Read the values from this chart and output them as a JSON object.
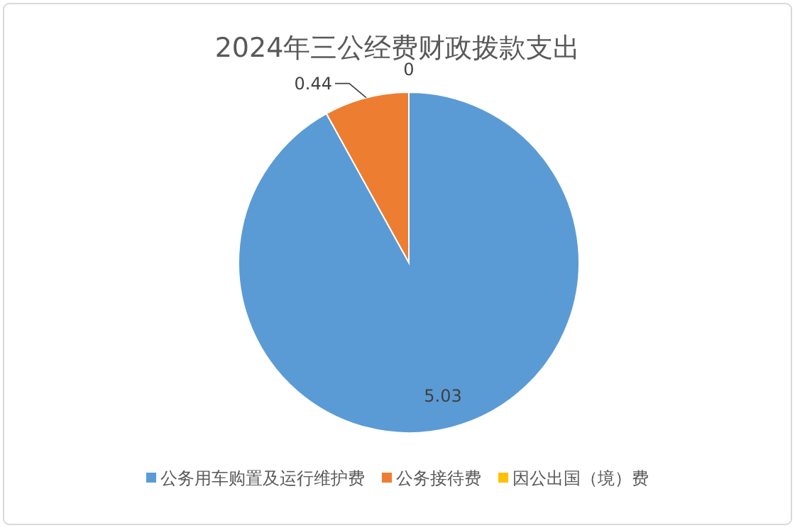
{
  "chart_data": {
    "type": "pie",
    "title": "2024年三公经费财政拨款支出",
    "categories": [
      "公务用车购置及运行维护费",
      "公务接待费",
      "因公出国（境）费"
    ],
    "values": [
      5.03,
      0.44,
      0
    ],
    "colors": [
      "#5b9bd5",
      "#ed7d31",
      "#ffc000"
    ],
    "value_labels": [
      "5.03",
      "0.44",
      "0"
    ],
    "legend": "bottom"
  }
}
